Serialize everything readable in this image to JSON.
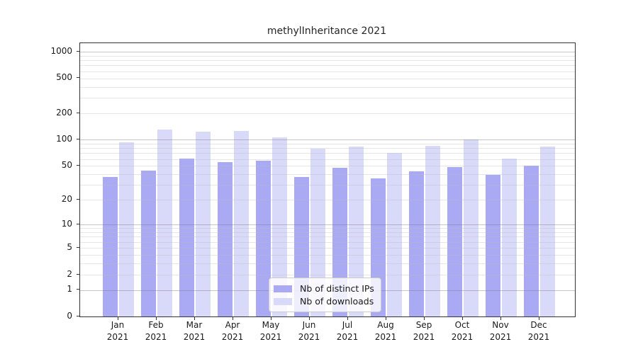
{
  "title": "methylInheritance 2021",
  "chart_data": {
    "type": "bar",
    "title": "methylInheritance 2021",
    "year": "2021",
    "categories": [
      "Jan",
      "Feb",
      "Mar",
      "Apr",
      "May",
      "Jun",
      "Jul",
      "Aug",
      "Sep",
      "Oct",
      "Nov",
      "Dec"
    ],
    "series": [
      {
        "name": "Nb of distinct IPs",
        "color": "#a9a9f4",
        "values": [
          37,
          44,
          60,
          55,
          57,
          37,
          47,
          36,
          43,
          48,
          39,
          50
        ]
      },
      {
        "name": "Nb of downloads",
        "color": "#d9d9f9",
        "values": [
          93,
          131,
          122,
          126,
          107,
          78,
          83,
          70,
          85,
          100,
          60,
          83
        ]
      }
    ],
    "yscale": "log1p",
    "y_ticks": [
      0,
      1,
      2,
      5,
      10,
      20,
      50,
      100,
      200,
      500,
      1000
    ],
    "ylim": [
      0,
      1070
    ],
    "grid": "horizontal",
    "legend_position": "bottom-center",
    "colors": {
      "spine": "#333333",
      "major_grid": "#b5b5b5",
      "minor_grid": "#e2e2e2",
      "background": "#ffffff"
    }
  }
}
